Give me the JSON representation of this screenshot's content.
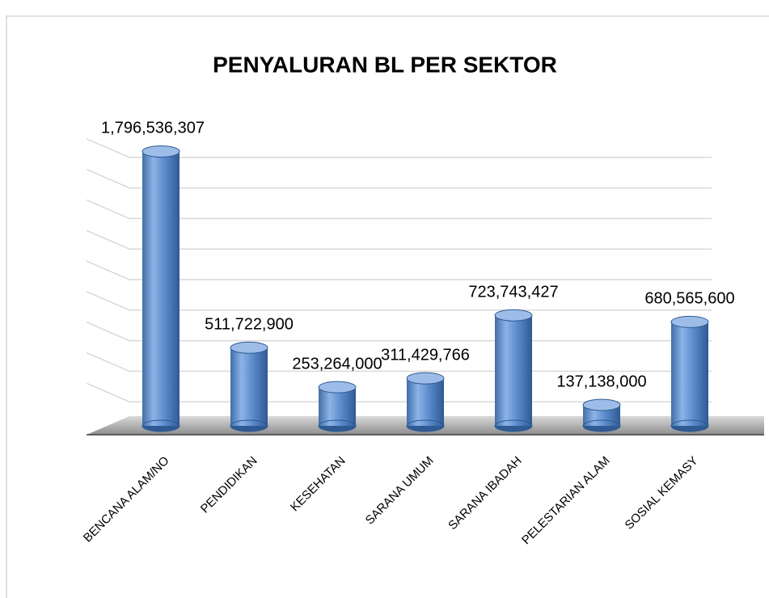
{
  "chart_data": {
    "type": "bar3d",
    "title": "PENYALURAN BL PER SEKTOR",
    "categories": [
      "BENCANA ALAM/NO",
      "PENDIDIKAN",
      "KESEHATAN",
      "SARANA UMUM",
      "SARANA IBADAH",
      "PELESTARIAN ALAM",
      "SOSIAL KEMASY"
    ],
    "values": [
      1796536307,
      511722900,
      253264000,
      311429766,
      723743427,
      137138000,
      680565600
    ],
    "value_labels": [
      "1,796,536,307",
      "511,722,900",
      "253,264,000",
      "311,429,766",
      "723,743,427",
      "137,138,000",
      "680,565,600"
    ],
    "color": "#4f81bd",
    "ylim": [
      0,
      2000000000
    ],
    "yticks": [
      200000000,
      400000000,
      600000000,
      800000000,
      1000000000,
      1200000000,
      1400000000,
      1600000000,
      1800000000
    ],
    "grid": true
  }
}
